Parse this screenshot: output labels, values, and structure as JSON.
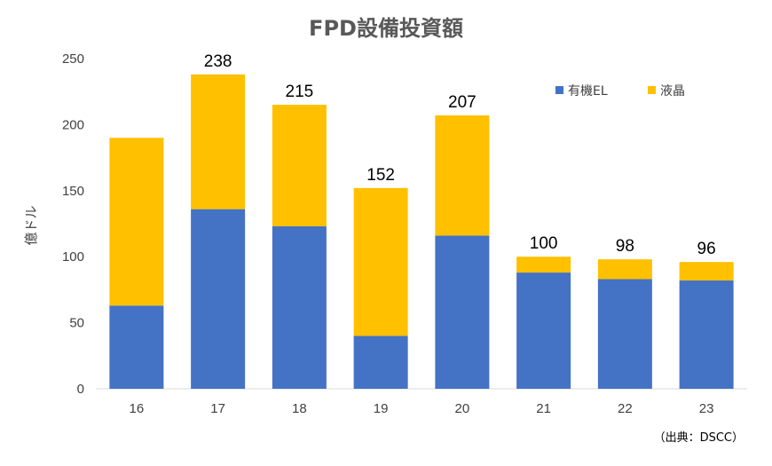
{
  "chart_data": {
    "type": "bar",
    "stacked": true,
    "title": "FPD設備投資額",
    "ylabel": "億ドル",
    "xlabel": "",
    "ylim": [
      0,
      250
    ],
    "yticks": [
      0,
      50,
      100,
      150,
      200,
      250
    ],
    "categories": [
      "16",
      "17",
      "18",
      "19",
      "20",
      "21",
      "22",
      "23"
    ],
    "series": [
      {
        "name": "有機EL",
        "color": "#4472C4",
        "values": [
          63,
          136,
          123,
          40,
          116,
          88,
          83,
          82
        ]
      },
      {
        "name": "液晶",
        "color": "#FFC000",
        "values": [
          127,
          102,
          92,
          112,
          91,
          12,
          15,
          14
        ]
      }
    ],
    "totals": [
      "",
      "238",
      "215",
      "152",
      "207",
      "100",
      "98",
      "96"
    ],
    "legend_position": "top-right",
    "grid": false,
    "source": "（出典：DSCC）"
  }
}
